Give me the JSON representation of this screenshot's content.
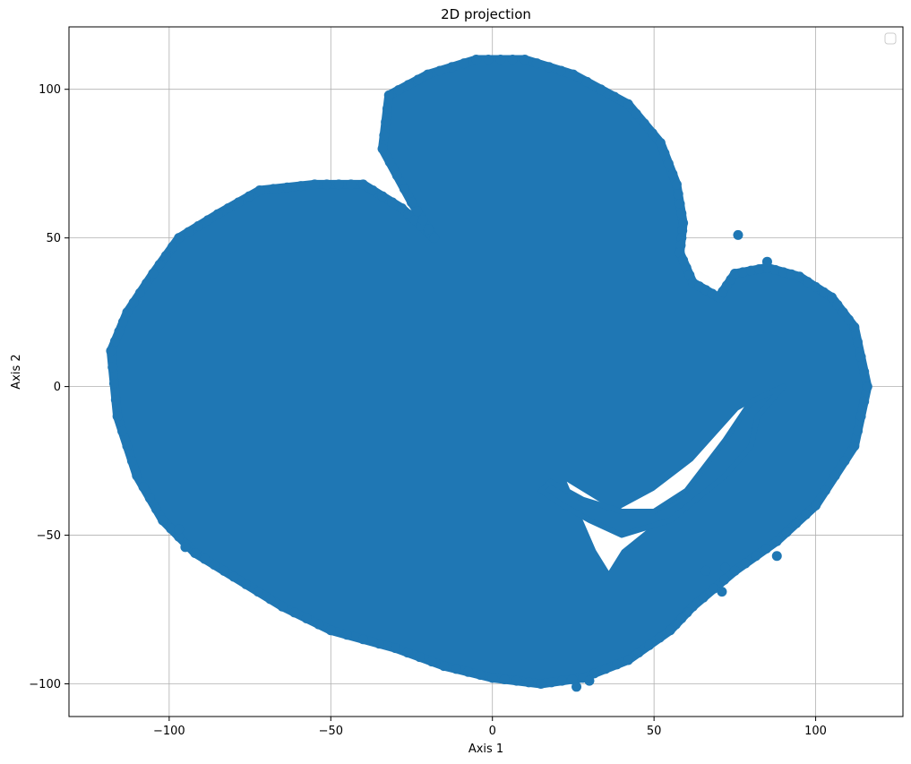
{
  "chart_data": {
    "type": "scatter",
    "title": "2D projection",
    "xlabel": "Axis 1",
    "ylabel": "Axis 2",
    "xlim": [
      -131,
      127
    ],
    "ylim": [
      -111,
      121
    ],
    "xticks": [
      -100,
      -50,
      0,
      50,
      100
    ],
    "yticks": [
      -100,
      -50,
      0,
      50,
      100
    ],
    "xtick_labels": [
      "−100",
      "−50",
      "0",
      "50",
      "100"
    ],
    "ytick_labels": [
      "−100",
      "−50",
      "0",
      "50",
      "100"
    ],
    "grid": true,
    "legend": {
      "placement": "top-right",
      "entries": []
    },
    "marker_color": "#1f77b4",
    "series": [
      {
        "shape": "dense point cloud",
        "boundary": [
          [
            -118,
            12
          ],
          [
            -113,
            25
          ],
          [
            -105,
            38
          ],
          [
            -97,
            50
          ],
          [
            -85,
            58
          ],
          [
            -72,
            66
          ],
          [
            -55,
            68
          ],
          [
            -40,
            68
          ],
          [
            -28,
            60
          ],
          [
            -20,
            52
          ],
          [
            -18,
            50
          ],
          [
            -25,
            62
          ],
          [
            -34,
            80
          ],
          [
            -32,
            98
          ],
          [
            -20,
            105
          ],
          [
            -5,
            110
          ],
          [
            10,
            110
          ],
          [
            25,
            105
          ],
          [
            42,
            95
          ],
          [
            52,
            82
          ],
          [
            57,
            68
          ],
          [
            59,
            55
          ],
          [
            58,
            45
          ],
          [
            62,
            35
          ],
          [
            70,
            30
          ],
          [
            75,
            38
          ],
          [
            85,
            40
          ],
          [
            95,
            37
          ],
          [
            105,
            30
          ],
          [
            112,
            20
          ],
          [
            116,
            0
          ],
          [
            112,
            -20
          ],
          [
            100,
            -40
          ],
          [
            88,
            -52
          ],
          [
            75,
            -62
          ],
          [
            62,
            -74
          ],
          [
            55,
            -82
          ],
          [
            42,
            -92
          ],
          [
            28,
            -98
          ],
          [
            15,
            -100
          ],
          [
            0,
            -98
          ],
          [
            -15,
            -94
          ],
          [
            -30,
            -88
          ],
          [
            -50,
            -82
          ],
          [
            -65,
            -74
          ],
          [
            -80,
            -64
          ],
          [
            -92,
            -56
          ],
          [
            -102,
            -45
          ],
          [
            -110,
            -30
          ],
          [
            -116,
            -10
          ]
        ],
        "hole": [
          [
            15,
            -35
          ],
          [
            22,
            -40
          ],
          [
            30,
            -45
          ],
          [
            40,
            -50
          ],
          [
            55,
            -45
          ],
          [
            72,
            -30
          ],
          [
            80,
            -20
          ],
          [
            82,
            -10
          ],
          [
            90,
            0
          ],
          [
            80,
            -5
          ],
          [
            72,
            -18
          ],
          [
            60,
            -35
          ],
          [
            50,
            -42
          ],
          [
            40,
            -42
          ],
          [
            28,
            -38
          ],
          [
            18,
            -32
          ]
        ],
        "gap": [
          [
            23,
            -32
          ],
          [
            28,
            -45
          ],
          [
            32,
            -55
          ],
          [
            36,
            -62
          ],
          [
            40,
            -55
          ],
          [
            48,
            -48
          ],
          [
            58,
            -40
          ],
          [
            70,
            -28
          ],
          [
            82,
            -12
          ],
          [
            84,
            -3
          ],
          [
            76,
            -8
          ],
          [
            62,
            -25
          ],
          [
            50,
            -35
          ],
          [
            38,
            -42
          ]
        ],
        "outliers": [
          [
            76,
            51
          ],
          [
            85,
            42
          ],
          [
            88,
            -57
          ],
          [
            71,
            -69
          ],
          [
            72,
            -61
          ],
          [
            66,
            -62
          ],
          [
            -97,
            -48
          ],
          [
            -95,
            -54
          ],
          [
            26,
            -101
          ],
          [
            30,
            -99
          ]
        ]
      }
    ]
  }
}
